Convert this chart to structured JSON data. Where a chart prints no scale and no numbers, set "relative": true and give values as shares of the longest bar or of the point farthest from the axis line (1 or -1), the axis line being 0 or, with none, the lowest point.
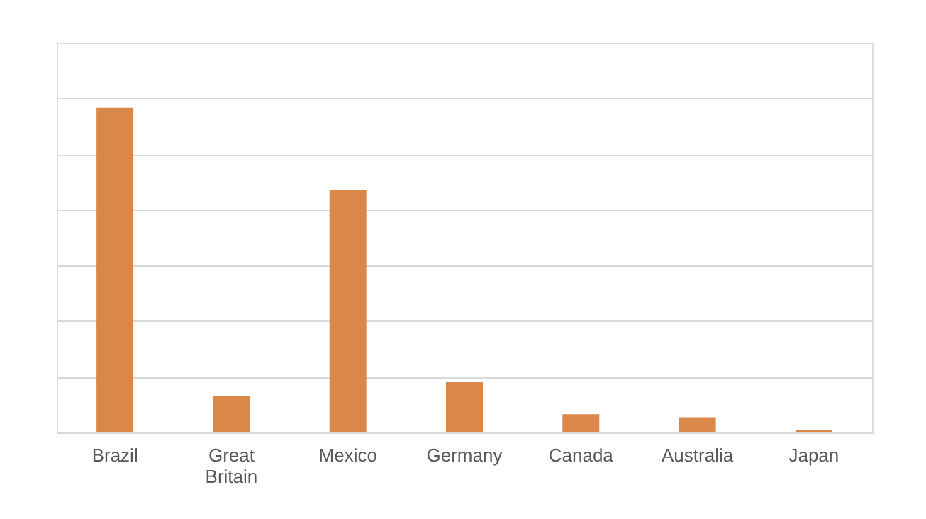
{
  "chart_data": {
    "type": "bar",
    "relative": true,
    "categories": [
      "Brazil",
      "Great Britain",
      "Mexico",
      "Germany",
      "Canada",
      "Australia",
      "Japan"
    ],
    "values": [
      1,
      0.113,
      0.746,
      0.155,
      0.056,
      0.047,
      0.009
    ],
    "color": "#d9884a",
    "grid": "y"
  }
}
